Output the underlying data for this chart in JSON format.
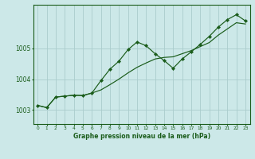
{
  "title": "Graphe pression niveau de la mer (hPa)",
  "bg_color": "#cce8e8",
  "grid_color": "#aacccc",
  "line_color": "#1a5c1a",
  "marker_color": "#1a5c1a",
  "xlim": [
    -0.5,
    23.5
  ],
  "ylim": [
    1002.55,
    1006.4
  ],
  "yticks": [
    1003,
    1004,
    1005
  ],
  "xticks": [
    0,
    1,
    2,
    3,
    4,
    5,
    6,
    7,
    8,
    9,
    10,
    11,
    12,
    13,
    14,
    15,
    16,
    17,
    18,
    19,
    20,
    21,
    22,
    23
  ],
  "series_smooth_x": [
    0,
    1,
    2,
    3,
    4,
    5,
    6,
    7,
    8,
    9,
    10,
    11,
    12,
    13,
    14,
    15,
    16,
    17,
    18,
    19,
    20,
    21,
    22,
    23
  ],
  "series_smooth_y": [
    1003.15,
    1003.08,
    1003.42,
    1003.45,
    1003.48,
    1003.47,
    1003.55,
    1003.65,
    1003.82,
    1004.0,
    1004.2,
    1004.38,
    1004.52,
    1004.65,
    1004.7,
    1004.72,
    1004.82,
    1004.92,
    1005.05,
    1005.18,
    1005.42,
    1005.62,
    1005.82,
    1005.78
  ],
  "series_jagged_x": [
    0,
    1,
    2,
    3,
    4,
    5,
    6,
    7,
    8,
    9,
    10,
    11,
    12,
    13,
    14,
    15,
    16,
    17,
    18,
    19,
    20,
    21,
    22,
    23
  ],
  "series_jagged_y": [
    1003.15,
    1003.08,
    1003.42,
    1003.45,
    1003.48,
    1003.47,
    1003.55,
    1003.95,
    1004.32,
    1004.58,
    1004.95,
    1005.2,
    1005.08,
    1004.82,
    1004.6,
    1004.35,
    1004.65,
    1004.88,
    1005.12,
    1005.38,
    1005.68,
    1005.92,
    1006.08,
    1005.88
  ]
}
